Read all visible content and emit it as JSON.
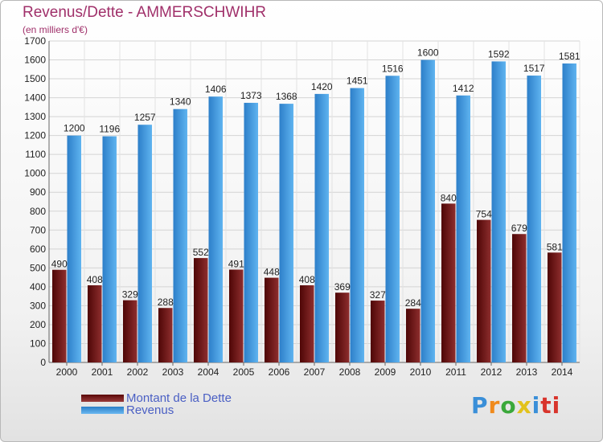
{
  "chart_data": {
    "type": "bar",
    "title": "Revenus/Dette - AMMERSCHWIHR",
    "unit_label": "(en milliers d'€)",
    "categories": [
      "2000",
      "2001",
      "2002",
      "2003",
      "2004",
      "2005",
      "2006",
      "2007",
      "2008",
      "2009",
      "2010",
      "2011",
      "2012",
      "2013",
      "2014"
    ],
    "series": [
      {
        "name": "Montant de la Dette",
        "color": "#7a1c1c",
        "values": [
          490,
          408,
          329,
          288,
          552,
          491,
          448,
          408,
          369,
          327,
          284,
          840,
          754,
          679,
          581
        ]
      },
      {
        "name": "Revenus",
        "color": "#3f9ee3",
        "values": [
          1200,
          1196,
          1257,
          1340,
          1406,
          1373,
          1368,
          1420,
          1451,
          1516,
          1600,
          1412,
          1592,
          1517,
          1581
        ]
      }
    ],
    "ylim": [
      0,
      1700
    ],
    "yticks": [
      0,
      100,
      200,
      300,
      400,
      500,
      600,
      700,
      800,
      900,
      1000,
      1100,
      1200,
      1300,
      1400,
      1500,
      1600,
      1700
    ],
    "grid": true,
    "legend_position": "bottom-left"
  },
  "logo": {
    "letters": [
      "P",
      "r",
      "o",
      "x",
      "i",
      "ti"
    ]
  }
}
